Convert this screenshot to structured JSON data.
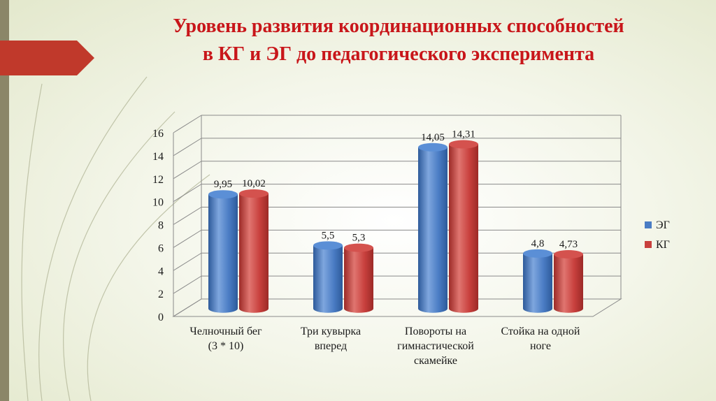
{
  "slide": {
    "title_line1": "Уровень развития координационных способностей",
    "title_line2": "в КГ и ЭГ до педагогического эксперимента"
  },
  "colors": {
    "title": "#c8161a",
    "eg": "#4a7cc4",
    "kg": "#c8403d",
    "accent_tab": "#c0392b"
  },
  "chart_data": {
    "type": "bar",
    "categories": [
      [
        "Челночный бег",
        "(3 * 10)"
      ],
      [
        "Три кувырка",
        "вперед"
      ],
      [
        "Повороты на",
        "гимнастической",
        "скамейке"
      ],
      [
        "Стойка на одной",
        "ноге"
      ]
    ],
    "series": [
      {
        "name": "ЭГ",
        "values": [
          9.95,
          5.5,
          14.05,
          4.8
        ],
        "labels": [
          "9,95",
          "5,5",
          "14,05",
          "4,8"
        ],
        "color": "#4a7cc4"
      },
      {
        "name": "КГ",
        "values": [
          10.02,
          5.3,
          14.31,
          4.73
        ],
        "labels": [
          "10,02",
          "5,3",
          "14,31",
          "4,73"
        ],
        "color": "#c8403d"
      }
    ],
    "yticks": [
      "0",
      "2",
      "4",
      "6",
      "8",
      "10",
      "12",
      "14",
      "16"
    ],
    "ylim": [
      0,
      16
    ],
    "grid": true,
    "legend_position": "right"
  }
}
